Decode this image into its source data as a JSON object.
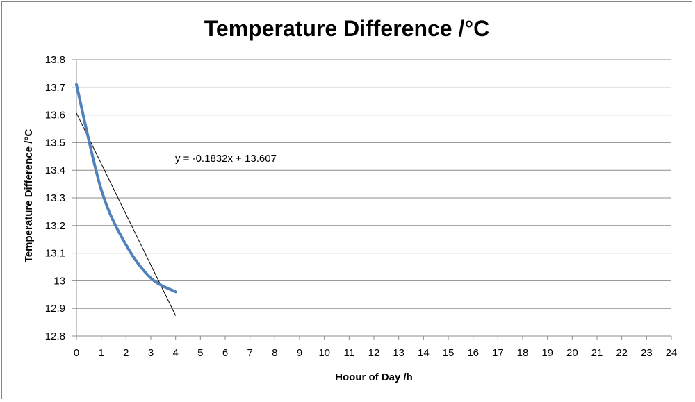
{
  "chart_data": {
    "type": "line",
    "title": "Temperature Difference /°C",
    "xlabel": "Hoour of Day /h",
    "ylabel": "Temperature Difference /°C",
    "xlim": [
      0,
      24
    ],
    "ylim": [
      12.8,
      13.8
    ],
    "x_ticks": [
      0,
      1,
      2,
      3,
      4,
      5,
      6,
      7,
      8,
      9,
      10,
      11,
      12,
      13,
      14,
      15,
      16,
      17,
      18,
      19,
      20,
      21,
      22,
      23,
      24
    ],
    "y_ticks": [
      12.8,
      12.9,
      13,
      13.1,
      13.2,
      13.3,
      13.4,
      13.5,
      13.6,
      13.7,
      13.8
    ],
    "y_tick_labels": [
      "12.8",
      "12.9",
      "13",
      "13.1",
      "13.2",
      "13.3",
      "13.4",
      "13.5",
      "13.6",
      "13.7",
      "13.8"
    ],
    "grid": "horizontal",
    "series": [
      {
        "color": "#4f81bd",
        "smooth": true,
        "x": [
          0,
          1,
          2,
          3,
          4
        ],
        "y": [
          13.71,
          13.33,
          13.13,
          13.01,
          12.96
        ]
      }
    ],
    "trendline": {
      "type": "linear",
      "slope": -0.1832,
      "intercept": 13.607,
      "x_range": [
        0,
        4
      ],
      "color": "#000000",
      "equation_label": "y = -0.1832x + 13.607"
    }
  }
}
